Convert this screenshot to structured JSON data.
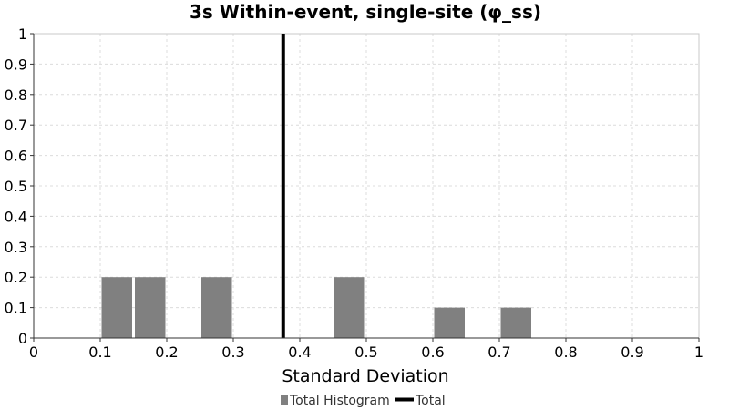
{
  "chart_data": {
    "type": "bar",
    "title": "3s Within-event, single-site (φ_ss)",
    "xlabel": "Standard Deviation",
    "ylabel": "",
    "xlim": [
      0,
      1
    ],
    "ylim": [
      0,
      1
    ],
    "x_ticks": [
      "0",
      "0.1",
      "0.2",
      "0.3",
      "0.4",
      "0.5",
      "0.6",
      "0.7",
      "0.8",
      "0.9",
      "1"
    ],
    "y_ticks": [
      "0",
      "0.1",
      "0.2",
      "0.3",
      "0.4",
      "0.5",
      "0.6",
      "0.7",
      "0.8",
      "0.9",
      "1"
    ],
    "grid": true,
    "legend_position": "bottom-center",
    "series": [
      {
        "name": "Total Histogram",
        "kind": "histogram",
        "color": "#808080",
        "bins": [
          {
            "x0": 0.1,
            "x1": 0.15,
            "value": 0.2
          },
          {
            "x0": 0.15,
            "x1": 0.2,
            "value": 0.2
          },
          {
            "x0": 0.25,
            "x1": 0.3,
            "value": 0.2
          },
          {
            "x0": 0.45,
            "x1": 0.5,
            "value": 0.2
          },
          {
            "x0": 0.6,
            "x1": 0.65,
            "value": 0.1
          },
          {
            "x0": 0.7,
            "x1": 0.75,
            "value": 0.1
          }
        ]
      },
      {
        "name": "Total",
        "kind": "vertical-line",
        "color": "#000000",
        "x": 0.375
      }
    ]
  }
}
